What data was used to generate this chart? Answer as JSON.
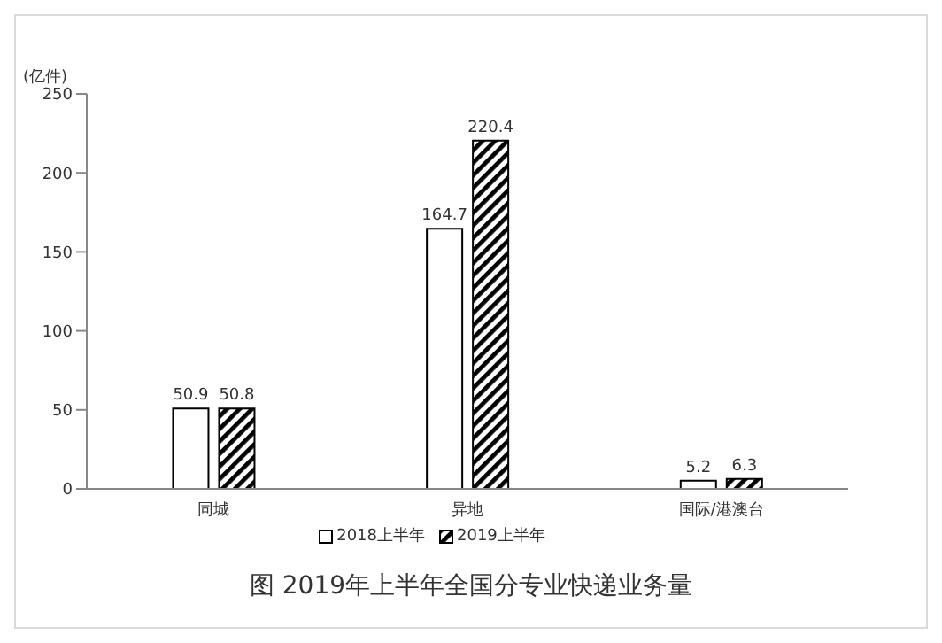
{
  "chart_data": {
    "type": "bar",
    "title": "图 2019年上半年全国分专业快递业务量",
    "ylabel": "(亿件)",
    "categories": [
      "同城",
      "异地",
      "国际/港澳台"
    ],
    "series": [
      {
        "name": "2018上半年",
        "color": "#ffffff",
        "values": [
          50.9,
          164.7,
          5.2
        ]
      },
      {
        "name": "2019上半年",
        "color": "#000000",
        "values": [
          50.8,
          220.4,
          6.3
        ]
      }
    ],
    "ylim": [
      0,
      250
    ],
    "yticks": [
      0,
      50,
      100,
      150,
      200,
      250
    ],
    "grid": false,
    "legend": "bottom",
    "data_labels": true
  }
}
